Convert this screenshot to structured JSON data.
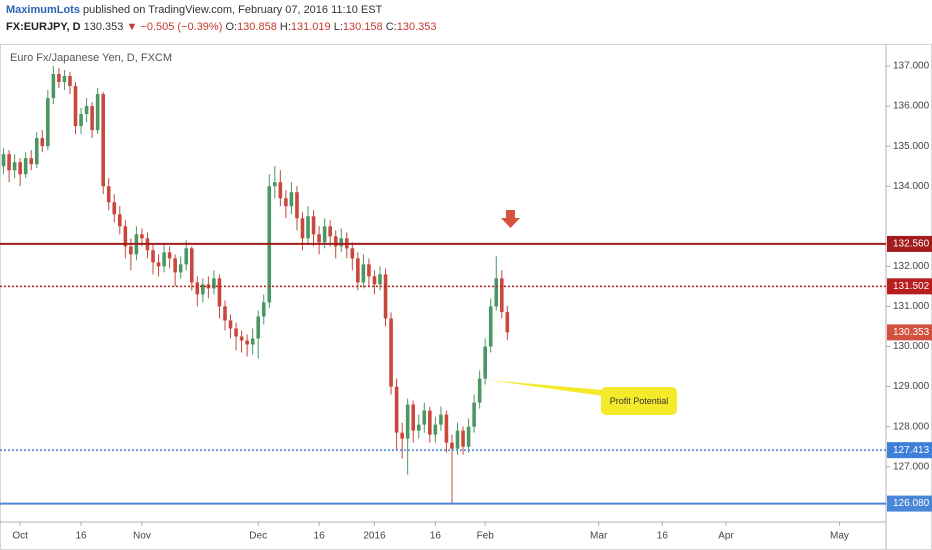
{
  "header": {
    "author": "MaximumLots",
    "byline": "published on TradingView.com, February 07, 2016 11:10 EST",
    "symbol": "FX:EURJPY, D",
    "price": "130.353",
    "change": "−0.505 (−0.39%)",
    "ohlc": [
      {
        "label": "O:",
        "value": "130.858"
      },
      {
        "label": "H:",
        "value": "131.019"
      },
      {
        "label": "L:",
        "value": "130.158"
      },
      {
        "label": "C:",
        "value": "130.353"
      }
    ]
  },
  "chart_data": {
    "type": "candlestick",
    "title": "Euro Fx/Japanese Yen, D, FXCM",
    "up_color": "#4a9763",
    "down_color": "#c9473c",
    "grid": false,
    "ylim": [
      125.62,
      137.35
    ],
    "yticks": [
      {
        "value": 137,
        "label": "137.000"
      },
      {
        "value": 136,
        "label": "136.000"
      },
      {
        "value": 135,
        "label": "135.000"
      },
      {
        "value": 134,
        "label": "134.000"
      },
      {
        "value": 132,
        "label": "132.000"
      },
      {
        "value": 131,
        "label": "131.000"
      },
      {
        "value": 130,
        "label": "130.000"
      },
      {
        "value": 129,
        "label": "129.000"
      },
      {
        "value": 128,
        "label": "128.000"
      },
      {
        "value": 127,
        "label": "127.000"
      }
    ],
    "xlim": [
      -0.64,
      159.4
    ],
    "xticks": [
      {
        "value": 3,
        "label": "Oct"
      },
      {
        "value": 14,
        "label": "16"
      },
      {
        "value": 25,
        "label": "Nov"
      },
      {
        "value": 46,
        "label": "Dec"
      },
      {
        "value": 57,
        "label": "16"
      },
      {
        "value": 67,
        "label": "2016"
      },
      {
        "value": 78,
        "label": "16"
      },
      {
        "value": 87,
        "label": "Feb"
      },
      {
        "value": 107.5,
        "label": "Mar"
      },
      {
        "value": 119,
        "label": "16"
      },
      {
        "value": 130.5,
        "label": "Apr"
      },
      {
        "value": 151,
        "label": "May"
      }
    ],
    "levels": [
      {
        "value": 132.56,
        "label": "132.560",
        "color": "#a31c1c",
        "style": "solid"
      },
      {
        "value": 131.502,
        "label": "131.502",
        "color": "#b81e1e",
        "style": "dotted"
      },
      {
        "value": 127.413,
        "label": "127.413",
        "color": "#3d7fd9",
        "style": "dotted"
      },
      {
        "value": 126.08,
        "label": "126.080",
        "color": "#4a86d8",
        "style": "solid"
      }
    ],
    "last_price": {
      "value": 130.353,
      "label": "130.353",
      "color": "#d2503f"
    },
    "annotation": "Profit Potential",
    "candles": [
      [
        134.5,
        134.95,
        134.3,
        134.8
      ],
      [
        134.8,
        134.9,
        134.1,
        134.4
      ],
      [
        134.4,
        134.8,
        134.2,
        134.6
      ],
      [
        134.6,
        134.7,
        134.0,
        134.3
      ],
      [
        134.3,
        134.85,
        134.2,
        134.7
      ],
      [
        134.7,
        134.9,
        134.4,
        134.55
      ],
      [
        134.55,
        135.35,
        134.45,
        135.2
      ],
      [
        135.2,
        135.4,
        134.85,
        135.0
      ],
      [
        135.0,
        136.4,
        134.9,
        136.2
      ],
      [
        136.2,
        137.0,
        136.05,
        136.8
      ],
      [
        136.8,
        136.95,
        136.45,
        136.6
      ],
      [
        136.6,
        136.9,
        136.4,
        136.75
      ],
      [
        136.75,
        136.85,
        136.3,
        136.5
      ],
      [
        136.5,
        136.6,
        135.3,
        135.5
      ],
      [
        135.5,
        135.95,
        135.3,
        135.8
      ],
      [
        135.8,
        136.2,
        135.6,
        136.0
      ],
      [
        136.0,
        136.1,
        135.2,
        135.4
      ],
      [
        135.4,
        136.45,
        135.3,
        136.3
      ],
      [
        136.3,
        136.35,
        133.8,
        134.0
      ],
      [
        134.0,
        134.2,
        133.4,
        133.6
      ],
      [
        133.6,
        133.8,
        133.1,
        133.3
      ],
      [
        133.3,
        133.5,
        132.8,
        133.0
      ],
      [
        133.0,
        133.15,
        132.2,
        132.5
      ],
      [
        132.5,
        132.7,
        131.9,
        132.3
      ],
      [
        132.3,
        133.0,
        132.15,
        132.8
      ],
      [
        132.8,
        132.95,
        132.5,
        132.7
      ],
      [
        132.7,
        132.85,
        132.2,
        132.4
      ],
      [
        132.4,
        132.55,
        131.8,
        132.1
      ],
      [
        132.1,
        132.3,
        131.75,
        132.0
      ],
      [
        132.0,
        132.55,
        131.85,
        132.35
      ],
      [
        132.35,
        132.5,
        131.95,
        132.2
      ],
      [
        132.2,
        132.3,
        131.5,
        131.85
      ],
      [
        131.85,
        132.25,
        131.7,
        132.05
      ],
      [
        132.05,
        132.65,
        131.9,
        132.45
      ],
      [
        132.45,
        132.5,
        131.4,
        131.6
      ],
      [
        131.6,
        131.75,
        131.0,
        131.3
      ],
      [
        131.3,
        131.7,
        131.1,
        131.55
      ],
      [
        131.55,
        131.75,
        131.2,
        131.45
      ],
      [
        131.45,
        131.9,
        131.3,
        131.7
      ],
      [
        131.7,
        131.8,
        130.7,
        131.0
      ],
      [
        131.0,
        131.15,
        130.4,
        130.65
      ],
      [
        130.65,
        130.8,
        130.2,
        130.45
      ],
      [
        130.45,
        130.6,
        129.9,
        130.25
      ],
      [
        130.25,
        130.4,
        129.85,
        130.15
      ],
      [
        130.15,
        130.3,
        129.75,
        130.05
      ],
      [
        130.05,
        130.45,
        129.8,
        130.2
      ],
      [
        130.2,
        130.9,
        129.7,
        130.75
      ],
      [
        130.75,
        131.3,
        130.55,
        131.1
      ],
      [
        131.1,
        134.3,
        130.95,
        134.0
      ],
      [
        134.0,
        134.5,
        133.7,
        134.1
      ],
      [
        134.1,
        134.4,
        133.5,
        133.7
      ],
      [
        133.7,
        133.9,
        133.2,
        133.5
      ],
      [
        133.5,
        134.1,
        133.3,
        133.85
      ],
      [
        133.85,
        134.0,
        132.9,
        133.2
      ],
      [
        133.2,
        133.35,
        132.4,
        132.7
      ],
      [
        132.7,
        133.5,
        132.55,
        133.25
      ],
      [
        133.25,
        133.4,
        132.5,
        132.8
      ],
      [
        132.8,
        133.0,
        132.3,
        132.6
      ],
      [
        132.6,
        133.2,
        132.45,
        133.0
      ],
      [
        133.0,
        133.15,
        132.5,
        132.75
      ],
      [
        132.75,
        132.9,
        132.2,
        132.5
      ],
      [
        132.5,
        132.95,
        132.35,
        132.7
      ],
      [
        132.7,
        132.85,
        132.2,
        132.45
      ],
      [
        132.45,
        132.6,
        131.9,
        132.2
      ],
      [
        132.2,
        132.35,
        131.4,
        131.6
      ],
      [
        131.6,
        132.3,
        131.45,
        132.05
      ],
      [
        132.05,
        132.2,
        131.5,
        131.75
      ],
      [
        131.75,
        131.9,
        131.3,
        131.55
      ],
      [
        131.55,
        132.0,
        131.4,
        131.8
      ],
      [
        131.8,
        131.95,
        130.5,
        130.7
      ],
      [
        130.7,
        130.85,
        128.8,
        129.0
      ],
      [
        129.0,
        129.2,
        127.4,
        127.85
      ],
      [
        127.85,
        128.1,
        127.2,
        127.7
      ],
      [
        127.7,
        128.7,
        126.8,
        128.55
      ],
      [
        128.55,
        128.65,
        127.6,
        127.9
      ],
      [
        127.9,
        128.3,
        127.7,
        128.05
      ],
      [
        128.05,
        128.6,
        127.85,
        128.4
      ],
      [
        128.4,
        128.5,
        127.6,
        127.8
      ],
      [
        127.8,
        128.25,
        127.6,
        128.05
      ],
      [
        128.05,
        128.5,
        127.9,
        128.3
      ],
      [
        128.3,
        128.4,
        127.35,
        127.6
      ],
      [
        127.6,
        127.8,
        126.1,
        127.45
      ],
      [
        127.45,
        128.1,
        127.3,
        127.9
      ],
      [
        127.9,
        128.0,
        127.3,
        127.5
      ],
      [
        127.5,
        128.2,
        127.35,
        128.0
      ],
      [
        128.0,
        128.8,
        127.85,
        128.6
      ],
      [
        128.6,
        129.4,
        128.45,
        129.2
      ],
      [
        129.2,
        130.2,
        129.05,
        130.0
      ],
      [
        130.0,
        131.2,
        129.85,
        131.0
      ],
      [
        131.0,
        132.25,
        130.9,
        131.7
      ],
      [
        131.7,
        131.9,
        130.7,
        130.86
      ],
      [
        130.858,
        131.019,
        130.158,
        130.353
      ]
    ]
  }
}
